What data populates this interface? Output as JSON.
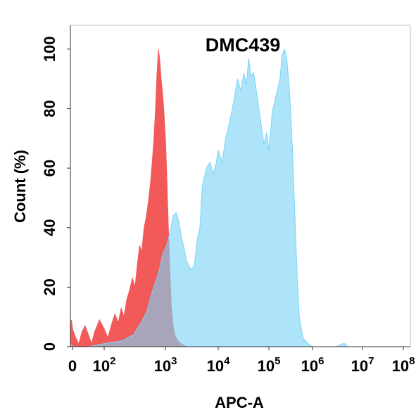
{
  "chart_data": {
    "type": "area",
    "title": "DMC439",
    "xlabel": "APC-A",
    "ylabel": "Count  (%)",
    "x_scale": "biexponential",
    "xlim": [
      -30,
      100000000
    ],
    "ylim": [
      0,
      108
    ],
    "x_ticks": [
      {
        "value": 0,
        "base": "0",
        "exp": ""
      },
      {
        "value": 100,
        "base": "10",
        "exp": "2"
      },
      {
        "value": 1000,
        "base": "10",
        "exp": "3"
      },
      {
        "value": 10000,
        "base": "10",
        "exp": "4"
      },
      {
        "value": 100000,
        "base": "10",
        "exp": "5"
      },
      {
        "value": 1000000,
        "base": "10",
        "exp": "6"
      },
      {
        "value": 10000000,
        "base": "10",
        "exp": "7"
      },
      {
        "value": 100000000,
        "base": "10",
        "exp": "8"
      }
    ],
    "y_ticks": [
      0,
      20,
      40,
      60,
      80,
      100
    ],
    "grid": false,
    "legend": "none",
    "series": [
      {
        "color": "#f25a5a",
        "points": [
          [
            -30,
            7
          ],
          [
            -15,
            9
          ],
          [
            0,
            6
          ],
          [
            10,
            3
          ],
          [
            20,
            1
          ],
          [
            30,
            5
          ],
          [
            40,
            7
          ],
          [
            50,
            4
          ],
          [
            60,
            1
          ],
          [
            70,
            5
          ],
          [
            85,
            9
          ],
          [
            100,
            6
          ],
          [
            115,
            3
          ],
          [
            130,
            7
          ],
          [
            150,
            11
          ],
          [
            170,
            8
          ],
          [
            190,
            13
          ],
          [
            210,
            10
          ],
          [
            235,
            16
          ],
          [
            260,
            19
          ],
          [
            290,
            23
          ],
          [
            320,
            20
          ],
          [
            350,
            28
          ],
          [
            380,
            34
          ],
          [
            410,
            32
          ],
          [
            450,
            40
          ],
          [
            490,
            44
          ],
          [
            530,
            49
          ],
          [
            570,
            55
          ],
          [
            610,
            62
          ],
          [
            650,
            70
          ],
          [
            690,
            80
          ],
          [
            730,
            92
          ],
          [
            770,
            100
          ],
          [
            810,
            96
          ],
          [
            850,
            90
          ],
          [
            900,
            85
          ],
          [
            950,
            78
          ],
          [
            1000,
            70
          ],
          [
            1050,
            60
          ],
          [
            1100,
            48
          ],
          [
            1150,
            37
          ],
          [
            1200,
            28
          ],
          [
            1250,
            20
          ],
          [
            1300,
            13
          ],
          [
            1400,
            7
          ],
          [
            1500,
            4
          ],
          [
            1700,
            2
          ],
          [
            2000,
            1
          ],
          [
            2500,
            0
          ]
        ]
      },
      {
        "color": "#7bd3f7",
        "points": [
          [
            -30,
            1
          ],
          [
            0,
            0
          ],
          [
            50,
            0
          ],
          [
            100,
            1
          ],
          [
            200,
            2
          ],
          [
            300,
            4
          ],
          [
            400,
            8
          ],
          [
            500,
            12
          ],
          [
            600,
            18
          ],
          [
            700,
            22
          ],
          [
            800,
            26
          ],
          [
            900,
            31
          ],
          [
            1000,
            33
          ],
          [
            1100,
            35
          ],
          [
            1200,
            38
          ],
          [
            1300,
            41
          ],
          [
            1400,
            44
          ],
          [
            1600,
            45
          ],
          [
            1800,
            42
          ],
          [
            2000,
            37
          ],
          [
            2200,
            34
          ],
          [
            2500,
            29
          ],
          [
            3000,
            26
          ],
          [
            3500,
            27
          ],
          [
            4000,
            36
          ],
          [
            4500,
            40
          ],
          [
            5000,
            54
          ],
          [
            6000,
            60
          ],
          [
            7000,
            62
          ],
          [
            8000,
            58
          ],
          [
            9000,
            61
          ],
          [
            10000,
            66
          ],
          [
            12000,
            62
          ],
          [
            14000,
            70
          ],
          [
            16000,
            74
          ],
          [
            18000,
            78
          ],
          [
            20000,
            82
          ],
          [
            24000,
            90
          ],
          [
            28000,
            86
          ],
          [
            32000,
            92
          ],
          [
            36000,
            88
          ],
          [
            40000,
            97
          ],
          [
            44000,
            91
          ],
          [
            50000,
            92
          ],
          [
            60000,
            83
          ],
          [
            70000,
            75
          ],
          [
            80000,
            68
          ],
          [
            90000,
            72
          ],
          [
            100000,
            66
          ],
          [
            120000,
            79
          ],
          [
            150000,
            85
          ],
          [
            180000,
            90
          ],
          [
            200000,
            98
          ],
          [
            230000,
            100
          ],
          [
            260000,
            96
          ],
          [
            300000,
            85
          ],
          [
            350000,
            65
          ],
          [
            400000,
            42
          ],
          [
            450000,
            22
          ],
          [
            500000,
            10
          ],
          [
            600000,
            3
          ],
          [
            800000,
            1
          ],
          [
            1000000,
            0
          ],
          [
            3000000,
            0
          ],
          [
            4000000,
            1
          ],
          [
            4500000,
            1
          ],
          [
            5000000,
            0
          ]
        ]
      }
    ]
  }
}
